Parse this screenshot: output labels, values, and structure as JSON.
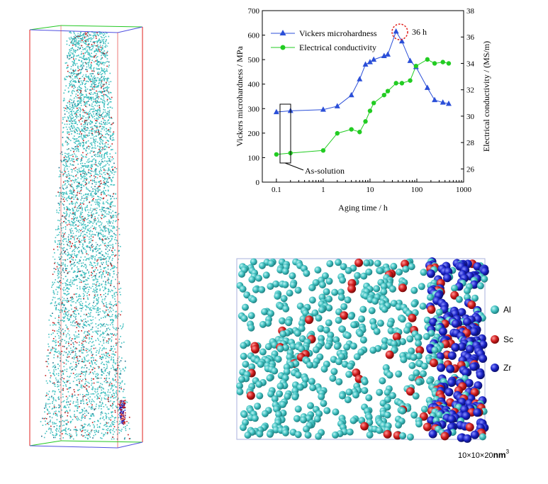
{
  "chart_data": [
    {
      "type": "line",
      "xlabel": "Aging time / h",
      "ylabel": "Vickers microhardness / MPa",
      "y2label": "Electrical conductivity / (MS/m)",
      "xscale": "log",
      "xlim": [
        0.05,
        1000
      ],
      "ylim": [
        0,
        700
      ],
      "y2lim": [
        25,
        38
      ],
      "xticks": [
        "0.1",
        "1",
        "10",
        "100",
        "1000"
      ],
      "yticks": [
        "0",
        "100",
        "200",
        "300",
        "400",
        "500",
        "600",
        "700"
      ],
      "y2ticks": [
        "26",
        "28",
        "30",
        "32",
        "34",
        "36",
        "38"
      ],
      "legend_position": "top-left",
      "series": [
        {
          "name": "Vickers microhardness",
          "axis": "left",
          "color": "#2b4fd8",
          "marker": "triangle",
          "x": [
            0.1,
            0.2,
            1,
            2,
            4,
            6,
            8,
            10,
            12,
            20,
            24,
            36,
            48,
            72,
            96,
            168,
            240,
            360,
            480
          ],
          "y": [
            286,
            291,
            296,
            310,
            355,
            420,
            480,
            490,
            500,
            515,
            521,
            615,
            575,
            495,
            470,
            385,
            335,
            325,
            320
          ]
        },
        {
          "name": "Electrical conductivity",
          "axis": "right",
          "color": "#22cc22",
          "marker": "circle",
          "x": [
            0.1,
            0.2,
            1,
            2,
            4,
            6,
            8,
            10,
            12,
            20,
            24,
            36,
            48,
            72,
            96,
            168,
            240,
            360,
            480
          ],
          "y": [
            27.1,
            27.2,
            27.4,
            28.7,
            29.0,
            28.8,
            29.6,
            30.4,
            31.0,
            31.6,
            31.9,
            32.5,
            32.5,
            32.7,
            33.8,
            34.3,
            34.0,
            34.1,
            34.0
          ]
        }
      ],
      "annotations": [
        "36 h",
        "As-solution"
      ]
    },
    {
      "type": "scatter",
      "legend": [
        {
          "name": "Al",
          "color": "#3ebfbf"
        },
        {
          "name": "Sc",
          "color": "#d01d1d"
        },
        {
          "name": "Zr",
          "color": "#1a23c8"
        }
      ],
      "scale_label": "10×10×20",
      "scale_unit": "nm",
      "scale_exp": "3"
    }
  ],
  "colors": {
    "al": "#3ebfbf",
    "sc": "#d01d1d",
    "zr": "#1a23c8",
    "box_red": "#e0201c",
    "box_blue": "#5050e0",
    "box_green": "#22c822"
  }
}
